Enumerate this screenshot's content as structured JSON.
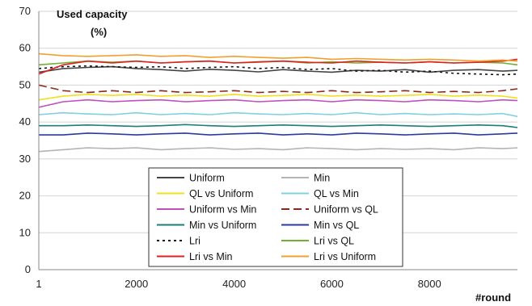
{
  "chart_data": {
    "type": "line",
    "ylabel_line1": "Used capacity",
    "ylabel_line2": "(%)",
    "xlabel": "#round",
    "xlim": [
      1,
      9800
    ],
    "ylim": [
      0,
      70
    ],
    "x_ticks": [
      1,
      2000,
      4000,
      6000,
      8000
    ],
    "x_tick_labels": [
      "1",
      "2000",
      "4000",
      "6000",
      "8000"
    ],
    "y_ticks": [
      0,
      10,
      20,
      30,
      40,
      50,
      60,
      70
    ],
    "y_tick_labels": [
      "0",
      "10",
      "20",
      "30",
      "40",
      "50",
      "60",
      "70"
    ],
    "grid": "horizontal",
    "legend_position": "bottom-center",
    "x": [
      1,
      500,
      1000,
      1500,
      2000,
      2500,
      3000,
      3500,
      4000,
      4500,
      5000,
      5500,
      6000,
      6500,
      7000,
      7500,
      8000,
      8500,
      9000,
      9500,
      9800
    ],
    "series": [
      {
        "name": "Uniform",
        "color": "#444444",
        "dash": "solid",
        "values": [
          53.5,
          54.5,
          54.8,
          55.0,
          54.5,
          54.2,
          53.8,
          54.3,
          54.0,
          53.6,
          54.2,
          53.8,
          53.5,
          54.0,
          53.8,
          54.2,
          53.5,
          54.0,
          54.2,
          53.8,
          54.0
        ]
      },
      {
        "name": "Min",
        "color": "#b4b4b4",
        "dash": "solid",
        "values": [
          32.0,
          32.5,
          33.0,
          32.8,
          33.0,
          32.5,
          32.8,
          33.0,
          32.6,
          32.8,
          32.5,
          33.0,
          32.8,
          32.5,
          32.8,
          32.6,
          32.8,
          32.5,
          33.0,
          32.8,
          33.0
        ]
      },
      {
        "name": "QL vs Uniform",
        "color": "#f0e020",
        "dash": "solid",
        "values": [
          46.0,
          47.0,
          47.5,
          47.2,
          47.5,
          47.0,
          47.3,
          47.0,
          47.5,
          47.0,
          47.2,
          47.5,
          47.0,
          47.3,
          47.0,
          47.2,
          47.5,
          47.0,
          47.3,
          47.0,
          46.5
        ]
      },
      {
        "name": "QL vs Min",
        "color": "#80d0e0",
        "dash": "solid",
        "values": [
          42.0,
          42.5,
          42.2,
          42.0,
          42.5,
          42.0,
          42.3,
          42.0,
          42.5,
          42.2,
          42.0,
          42.3,
          42.0,
          42.5,
          42.0,
          42.3,
          42.0,
          42.2,
          42.0,
          42.3,
          41.5
        ]
      },
      {
        "name": "Uniform vs Min",
        "color": "#c050c0",
        "dash": "solid",
        "values": [
          44.0,
          45.5,
          46.0,
          45.5,
          45.8,
          46.0,
          45.5,
          45.8,
          46.0,
          45.5,
          45.8,
          46.0,
          45.5,
          46.0,
          45.8,
          45.5,
          46.0,
          45.8,
          45.5,
          46.0,
          45.8
        ]
      },
      {
        "name": "Uniform vs QL",
        "color": "#8b2a1a",
        "dash": "dashed",
        "values": [
          50.0,
          48.5,
          48.0,
          48.5,
          48.0,
          48.5,
          48.0,
          48.2,
          48.5,
          48.0,
          48.3,
          48.0,
          48.5,
          48.0,
          48.2,
          48.5,
          48.0,
          48.3,
          48.0,
          48.5,
          49.0
        ]
      },
      {
        "name": "Min vs Uniform",
        "color": "#1a7f7a",
        "dash": "solid",
        "values": [
          39.0,
          39.0,
          39.2,
          39.0,
          38.8,
          39.0,
          39.3,
          39.0,
          38.8,
          39.0,
          39.2,
          39.0,
          38.8,
          39.0,
          39.2,
          39.0,
          38.8,
          39.0,
          39.2,
          39.0,
          38.5
        ]
      },
      {
        "name": "Min vs QL",
        "color": "#2a3aa0",
        "dash": "solid",
        "values": [
          36.5,
          36.5,
          37.0,
          36.8,
          36.5,
          36.8,
          37.0,
          36.5,
          36.8,
          37.0,
          36.5,
          36.8,
          36.5,
          37.0,
          36.8,
          36.5,
          36.8,
          37.0,
          36.5,
          36.8,
          37.0
        ]
      },
      {
        "name": "Lri",
        "color": "#111111",
        "dash": "dotted",
        "values": [
          54.5,
          55.0,
          55.2,
          55.0,
          54.8,
          55.0,
          54.5,
          54.8,
          55.0,
          54.5,
          54.8,
          54.2,
          54.5,
          53.8,
          54.0,
          53.5,
          53.8,
          53.2,
          53.0,
          52.8,
          53.0
        ]
      },
      {
        "name": "Lri vs QL",
        "color": "#70b030",
        "dash": "solid",
        "values": [
          55.5,
          56.0,
          56.5,
          56.2,
          56.5,
          56.0,
          56.3,
          56.5,
          56.0,
          56.2,
          56.5,
          56.0,
          56.3,
          56.0,
          56.2,
          56.0,
          56.3,
          56.0,
          56.2,
          56.0,
          55.5
        ]
      },
      {
        "name": "Lri vs Min",
        "color": "#e02020",
        "dash": "solid",
        "values": [
          53.0,
          55.5,
          56.5,
          56.0,
          56.5,
          56.0,
          56.3,
          56.5,
          56.0,
          56.3,
          56.5,
          56.2,
          56.0,
          56.5,
          56.2,
          56.0,
          56.3,
          56.0,
          56.2,
          56.5,
          57.0
        ]
      },
      {
        "name": "Lri vs Uniform",
        "color": "#f0a030",
        "dash": "solid",
        "values": [
          58.5,
          58.0,
          57.8,
          58.0,
          58.2,
          57.8,
          58.0,
          57.5,
          57.8,
          57.5,
          57.3,
          57.5,
          57.0,
          57.2,
          57.0,
          56.8,
          57.0,
          56.8,
          56.5,
          56.8,
          56.5
        ]
      }
    ]
  }
}
